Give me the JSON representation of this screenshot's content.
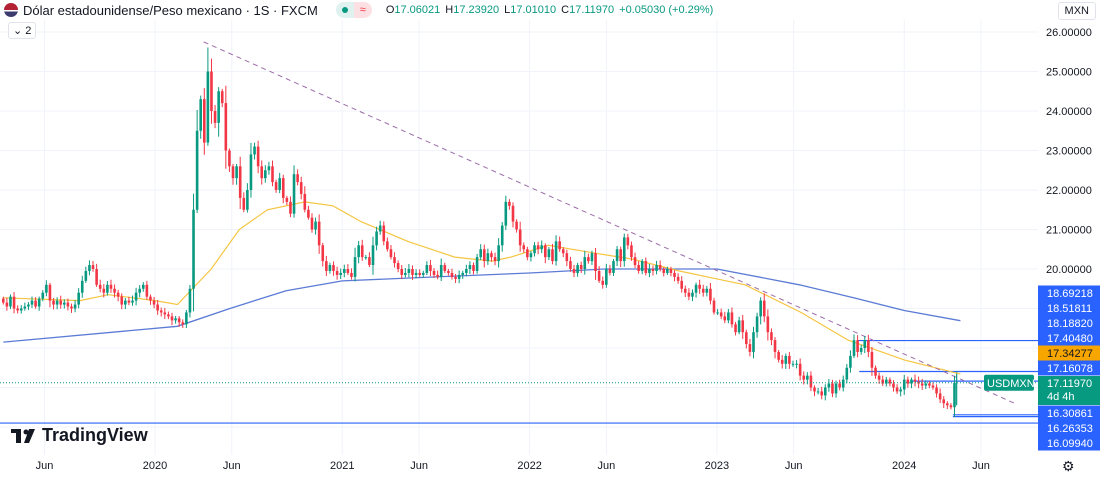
{
  "header": {
    "title": "Dólar estadounidense/Peso mexicano · 1S · FXCM",
    "status_approx": "≈",
    "open_label": "O",
    "open": "17.06021",
    "high_label": "H",
    "high": "17.23920",
    "low_label": "L",
    "low": "17.01010",
    "close_label": "C",
    "close": "17.11970",
    "change": "+0.05030 (+0.29%)",
    "indicators_toggle": "2",
    "currency": "MXN"
  },
  "logo": {
    "text": "TradingView"
  },
  "colors": {
    "up": "#089981",
    "down": "#f23645",
    "ma_fast": "#f5c542",
    "ma_slow": "#5b7bd5",
    "trend": "#9c6ca8",
    "level": "#2962ff",
    "current": "#089981",
    "ma_fast_label": "#f7a600"
  },
  "chart_data": {
    "type": "candlestick",
    "symbol": "USDMXN",
    "interval": "1S",
    "start": 2019.19,
    "closes": [
      19.15,
      19.05,
      19.3,
      19.0,
      18.95,
      19.0,
      19.05,
      19.1,
      19.2,
      19.05,
      19.25,
      19.4,
      19.6,
      19.2,
      19.1,
      19.2,
      19.1,
      19.15,
      19.05,
      19.0,
      19.1,
      19.4,
      19.7,
      19.95,
      20.1,
      20.0,
      19.6,
      19.5,
      19.4,
      19.6,
      19.5,
      19.4,
      19.3,
      19.1,
      19.2,
      19.15,
      19.2,
      19.4,
      19.5,
      19.6,
      19.3,
      19.2,
      19.1,
      18.95,
      18.9,
      18.85,
      18.8,
      18.7,
      18.75,
      18.65,
      18.6,
      18.9,
      19.5,
      21.5,
      23.5,
      24.3,
      23.2,
      25.0,
      24.0,
      23.7,
      24.5,
      24.2,
      23.0,
      22.6,
      22.3,
      22.6,
      21.8,
      21.5,
      22.0,
      22.9,
      23.1,
      22.6,
      22.3,
      22.5,
      22.6,
      22.2,
      22.0,
      22.3,
      21.8,
      21.7,
      21.4,
      22.4,
      22.2,
      21.9,
      21.5,
      21.3,
      21.0,
      21.2,
      20.6,
      20.2,
      19.95,
      20.1,
      19.95,
      19.85,
      19.9,
      20.0,
      19.9,
      19.8,
      20.3,
      20.6,
      20.3,
      20.3,
      20.1,
      20.6,
      20.95,
      21.1,
      20.7,
      20.5,
      20.3,
      20.15,
      20.0,
      19.85,
      19.9,
      20.0,
      19.85,
      19.9,
      19.85,
      19.9,
      20.1,
      19.95,
      19.85,
      19.8,
      20.1,
      19.95,
      19.9,
      19.8,
      19.75,
      19.85,
      19.9,
      20.0,
      20.1,
      19.95,
      20.3,
      20.5,
      20.2,
      20.4,
      20.3,
      20.2,
      20.6,
      21.1,
      21.7,
      21.6,
      21.2,
      21.0,
      20.6,
      20.5,
      20.3,
      20.4,
      20.6,
      20.5,
      20.6,
      20.3,
      20.5,
      20.2,
      20.7,
      20.5,
      20.4,
      20.2,
      20.0,
      19.9,
      20.1,
      20.0,
      20.3,
      20.2,
      20.4,
      19.95,
      19.7,
      19.6,
      20.0,
      19.9,
      20.2,
      20.5,
      20.2,
      20.8,
      20.6,
      20.3,
      20.1,
      19.95,
      20.2,
      19.9,
      20.0,
      19.95,
      20.1,
      20.0,
      19.9,
      20.0,
      19.9,
      19.8,
      19.7,
      19.5,
      19.4,
      19.3,
      19.4,
      19.6,
      19.5,
      19.4,
      19.5,
      19.2,
      18.9,
      18.9,
      18.8,
      18.7,
      18.9,
      18.6,
      18.4,
      18.7,
      18.4,
      18.1,
      17.9,
      18.4,
      18.8,
      19.2,
      18.8,
      18.4,
      18.2,
      17.9,
      17.7,
      17.6,
      17.8,
      17.6,
      17.6,
      17.6,
      17.3,
      17.2,
      17.3,
      17.0,
      16.9,
      16.9,
      16.8,
      17.0,
      17.1,
      16.85,
      17.1,
      17.0,
      17.2,
      17.5,
      17.8,
      18.2,
      17.9,
      18.0,
      18.2,
      17.9,
      17.5,
      17.3,
      17.2,
      17.1,
      17.2,
      17.1,
      17.0,
      16.9,
      16.95,
      17.2,
      17.1,
      17.2,
      17.15,
      17.1,
      17.05,
      17.1,
      17.05,
      17.0,
      16.85,
      16.7,
      16.6,
      16.55,
      16.5,
      17.12
    ],
    "ma_fast": [
      [
        2019.19,
        19.27
      ],
      [
        2019.6,
        19.2
      ],
      [
        2019.75,
        19.35
      ],
      [
        2020.0,
        19.2
      ],
      [
        2020.12,
        19.1
      ],
      [
        2020.3,
        20.0
      ],
      [
        2020.45,
        21.0
      ],
      [
        2020.6,
        21.5
      ],
      [
        2020.8,
        21.7
      ],
      [
        2020.95,
        21.6
      ],
      [
        2021.1,
        21.2
      ],
      [
        2021.35,
        20.7
      ],
      [
        2021.6,
        20.3
      ],
      [
        2021.8,
        20.2
      ],
      [
        2021.9,
        20.3
      ],
      [
        2022.1,
        20.6
      ],
      [
        2022.35,
        20.4
      ],
      [
        2022.55,
        20.25
      ],
      [
        2022.8,
        19.95
      ],
      [
        2023.0,
        19.75
      ],
      [
        2023.15,
        19.6
      ],
      [
        2023.45,
        18.9
      ],
      [
        2023.7,
        18.2
      ],
      [
        2024.0,
        17.7
      ],
      [
        2024.3,
        17.34
      ]
    ],
    "ma_slow": [
      [
        2019.19,
        18.15
      ],
      [
        2020.12,
        18.55
      ],
      [
        2020.4,
        19.0
      ],
      [
        2020.7,
        19.45
      ],
      [
        2021.0,
        19.7
      ],
      [
        2021.5,
        19.8
      ],
      [
        2022.0,
        19.9
      ],
      [
        2022.4,
        20.0
      ],
      [
        2023.0,
        20.0
      ],
      [
        2023.44,
        19.6
      ],
      [
        2023.73,
        19.27
      ],
      [
        2024.0,
        18.95
      ],
      [
        2024.3,
        18.69
      ]
    ],
    "trendline": [
      [
        2020.26,
        25.75
      ],
      [
        2024.59,
        16.6
      ]
    ],
    "levels": [
      {
        "value": 18.1882,
        "from": 2023.75
      },
      {
        "value": 17.4048,
        "from": 2023.76
      },
      {
        "value": 17.16078,
        "from": 2024.04
      },
      {
        "value": 16.30861,
        "from": 2024.26
      },
      {
        "value": 16.26353,
        "from": 2024.26
      },
      {
        "value": 16.0994,
        "from": 2019.0
      }
    ],
    "price_labels": [
      {
        "text": "18.69218",
        "kind": "level"
      },
      {
        "text": "18.51811",
        "kind": "level"
      },
      {
        "text": "18.18820",
        "kind": "level"
      },
      {
        "text": "17.40480",
        "kind": "level"
      },
      {
        "text": "17.34277",
        "kind": "ma"
      },
      {
        "text": "17.16078",
        "kind": "level"
      },
      {
        "text": "16.30861",
        "kind": "level"
      },
      {
        "text": "16.26353",
        "kind": "level"
      },
      {
        "text": "16.09940",
        "kind": "level"
      }
    ],
    "last_price": {
      "value": 17.1197,
      "text": "17.11970",
      "countdown": "4d 4h",
      "symbol_label": "USDMXN"
    },
    "y_ticks": [
      "26.00000",
      "25.00000",
      "24.00000",
      "23.00000",
      "22.00000",
      "21.00000",
      "20.00000"
    ],
    "ylim": [
      15.85,
      26.3
    ],
    "x_ticks": [
      {
        "label": "Jun",
        "t": 2019.41
      },
      {
        "label": "2020",
        "t": 2020.0
      },
      {
        "label": "Jun",
        "t": 2020.41
      },
      {
        "label": "2021",
        "t": 2021.0
      },
      {
        "label": "Jun",
        "t": 2021.41
      },
      {
        "label": "2022",
        "t": 2022.0
      },
      {
        "label": "Jun",
        "t": 2022.41
      },
      {
        "label": "2023",
        "t": 2023.0
      },
      {
        "label": "Jun",
        "t": 2023.41
      },
      {
        "label": "2024",
        "t": 2024.0
      },
      {
        "label": "Jun",
        "t": 2024.41
      }
    ],
    "grid": true
  }
}
